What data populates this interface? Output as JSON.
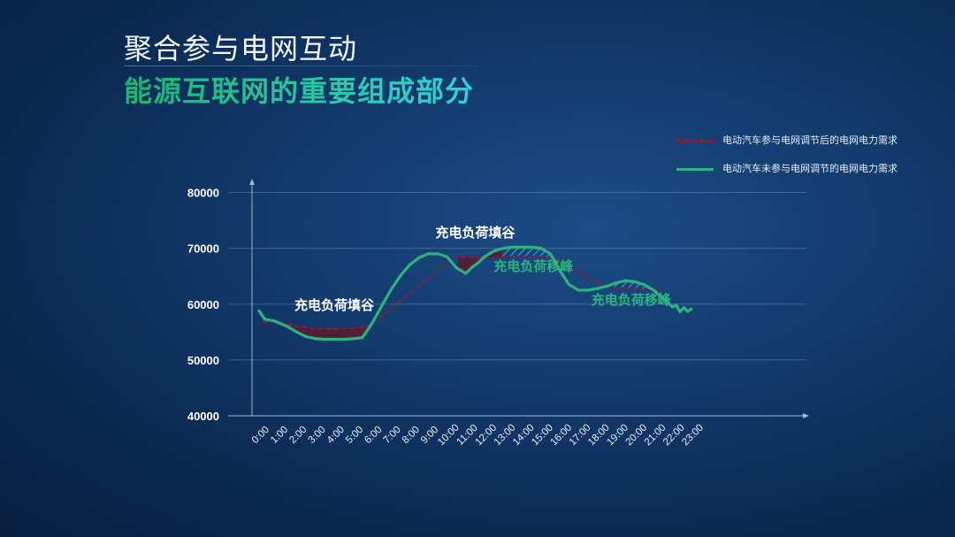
{
  "header": {
    "title": "聚合参与电网互动",
    "subtitle": "能源互联网的重要组成部分"
  },
  "colors": {
    "adjusted_line": "#8b1e34",
    "baseline_line": "#2bb57e",
    "valley_fill": "#5a1a30",
    "peak_hatch": "#2f9bdc",
    "annotation_white": "#ffffff",
    "annotation_green": "#2bb57e"
  },
  "chart_data": {
    "type": "line",
    "title": "",
    "xlabel": "",
    "ylabel": "",
    "ylim": [
      40000,
      80000
    ],
    "yticks": [
      40000,
      50000,
      60000,
      70000,
      80000
    ],
    "ytick_labels": [
      "40000",
      "50000",
      "60000",
      "70000",
      "80000"
    ],
    "categories": [
      "0:00",
      "1:00",
      "2:00",
      "3:00",
      "4:00",
      "5:00",
      "6:00",
      "7:00",
      "8:00",
      "9:00",
      "10:00",
      "11:00",
      "12:00",
      "13:00",
      "14:00",
      "15:00",
      "16:00",
      "17:00",
      "18:00",
      "19:00",
      "20:00",
      "21:00",
      "22:00",
      "23:00"
    ],
    "grid": "horizontal",
    "legend_position": "top-right",
    "series": [
      {
        "name": "电动汽车参与电网调节后的电网电力需求",
        "style": "dashed",
        "x": [
          0.2,
          1.0,
          2.0,
          3.0,
          4.0,
          5.0,
          5.8,
          10.5,
          11.0,
          11.5,
          12.0,
          12.5,
          13.0,
          14.0,
          15.0,
          15.5,
          18.5,
          19.0,
          20.0,
          21.0,
          21.5
        ],
        "values": [
          56800,
          56800,
          56000,
          55600,
          55600,
          55700,
          56000,
          68600,
          68400,
          68300,
          68300,
          68400,
          68500,
          68600,
          68500,
          68400,
          63000,
          62900,
          62800,
          62600,
          62500
        ]
      },
      {
        "name": "电动汽车未参与电网调节的电网电力需求",
        "style": "solid",
        "x": [
          0.0,
          0.3,
          0.8,
          1.5,
          2.0,
          2.5,
          3.0,
          3.5,
          4.0,
          4.5,
          5.0,
          5.5,
          6.0,
          6.5,
          7.0,
          7.5,
          8.0,
          8.5,
          9.0,
          9.5,
          10.0,
          10.5,
          11.0,
          11.3,
          11.7,
          12.0,
          12.5,
          13.0,
          13.5,
          14.0,
          14.5,
          15.0,
          15.5,
          16.0,
          16.5,
          17.0,
          17.5,
          18.0,
          18.5,
          19.0,
          19.5,
          20.0,
          20.5,
          21.0,
          21.5,
          22.0,
          22.2,
          22.4,
          22.6,
          22.8,
          23.0
        ],
        "values": [
          58800,
          57300,
          57000,
          56000,
          55000,
          54200,
          53800,
          53700,
          53700,
          53700,
          53800,
          54000,
          56500,
          59500,
          62500,
          65000,
          67000,
          68300,
          69000,
          69000,
          68500,
          66500,
          65500,
          66500,
          67500,
          68500,
          69500,
          70000,
          70200,
          70200,
          70200,
          70000,
          69000,
          66000,
          63500,
          62500,
          62500,
          62800,
          63200,
          63800,
          64200,
          64000,
          63500,
          62500,
          61000,
          59500,
          59800,
          58600,
          59400,
          58700,
          59100
        ]
      }
    ],
    "annotations": [
      {
        "text": "充电负荷填谷",
        "at": [
          4.0,
          59000
        ],
        "color": "white"
      },
      {
        "text": "充电负荷填谷",
        "at": [
          11.5,
          72000
        ],
        "color": "white"
      },
      {
        "text": "充电负荷移峰",
        "at": [
          14.6,
          66000
        ],
        "color": "green"
      },
      {
        "text": "充电负荷移峰",
        "at": [
          19.8,
          60000
        ],
        "color": "green"
      }
    ]
  }
}
